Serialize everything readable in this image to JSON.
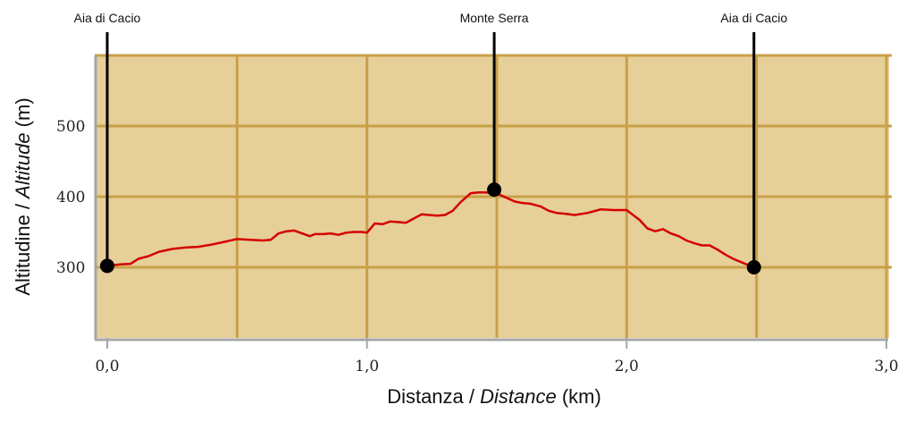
{
  "chart_data": {
    "type": "line",
    "xlabel_parts": [
      "Distanza / ",
      "Distance",
      " (km)"
    ],
    "ylabel_parts": [
      "Altitudine / ",
      "Altitude",
      " (m)"
    ],
    "xlim": [
      0,
      3.0
    ],
    "ylim": [
      200,
      600
    ],
    "x_ticks": [
      0,
      1.0,
      2.0,
      3.0
    ],
    "x_tick_labels": [
      "0,0",
      "1,0",
      "2,0",
      "3,0"
    ],
    "y_ticks": [
      300,
      400,
      500
    ],
    "y_tick_labels": [
      "300",
      "400",
      "500"
    ],
    "grid": true,
    "colors": {
      "plot_bg": "#e6cf98",
      "grid": "#c9a049",
      "line": "#d40000",
      "axis": "#a6a6a6",
      "marker": "#000000"
    },
    "waypoints": [
      {
        "label": "Aia di Cacio",
        "x": 0.0,
        "y": 302
      },
      {
        "label": "Monte Serra",
        "x": 1.49,
        "y": 410
      },
      {
        "label": "Aia di Cacio",
        "x": 2.49,
        "y": 300
      }
    ],
    "series": [
      {
        "x": [
          0.0,
          0.05,
          0.09,
          0.12,
          0.16,
          0.2,
          0.25,
          0.3,
          0.35,
          0.4,
          0.45,
          0.5,
          0.55,
          0.6,
          0.63,
          0.66,
          0.69,
          0.72,
          0.75,
          0.78,
          0.8,
          0.83,
          0.86,
          0.89,
          0.92,
          0.95,
          0.98,
          1.0,
          1.03,
          1.06,
          1.09,
          1.12,
          1.15,
          1.18,
          1.21,
          1.24,
          1.27,
          1.3,
          1.33,
          1.36,
          1.4,
          1.43,
          1.46,
          1.49,
          1.51,
          1.54,
          1.57,
          1.6,
          1.63,
          1.67,
          1.7,
          1.73,
          1.76,
          1.8,
          1.85,
          1.9,
          1.95,
          2.0,
          2.05,
          2.08,
          2.11,
          2.14,
          2.17,
          2.2,
          2.23,
          2.26,
          2.29,
          2.32,
          2.35,
          2.38,
          2.41,
          2.45,
          2.49
        ],
        "y": [
          302,
          304,
          305,
          312,
          316,
          322,
          326,
          328,
          329,
          332,
          336,
          340,
          339,
          338,
          339,
          348,
          351,
          352,
          348,
          344,
          347,
          347,
          348,
          346,
          349,
          350,
          350,
          349,
          362,
          361,
          365,
          364,
          363,
          369,
          375,
          374,
          373,
          374,
          380,
          392,
          405,
          406,
          406,
          404,
          403,
          398,
          393,
          391,
          390,
          386,
          380,
          377,
          376,
          374,
          377,
          382,
          381,
          381,
          367,
          355,
          351,
          354,
          348,
          344,
          338,
          334,
          331,
          331,
          325,
          318,
          312,
          306,
          300
        ]
      }
    ]
  }
}
